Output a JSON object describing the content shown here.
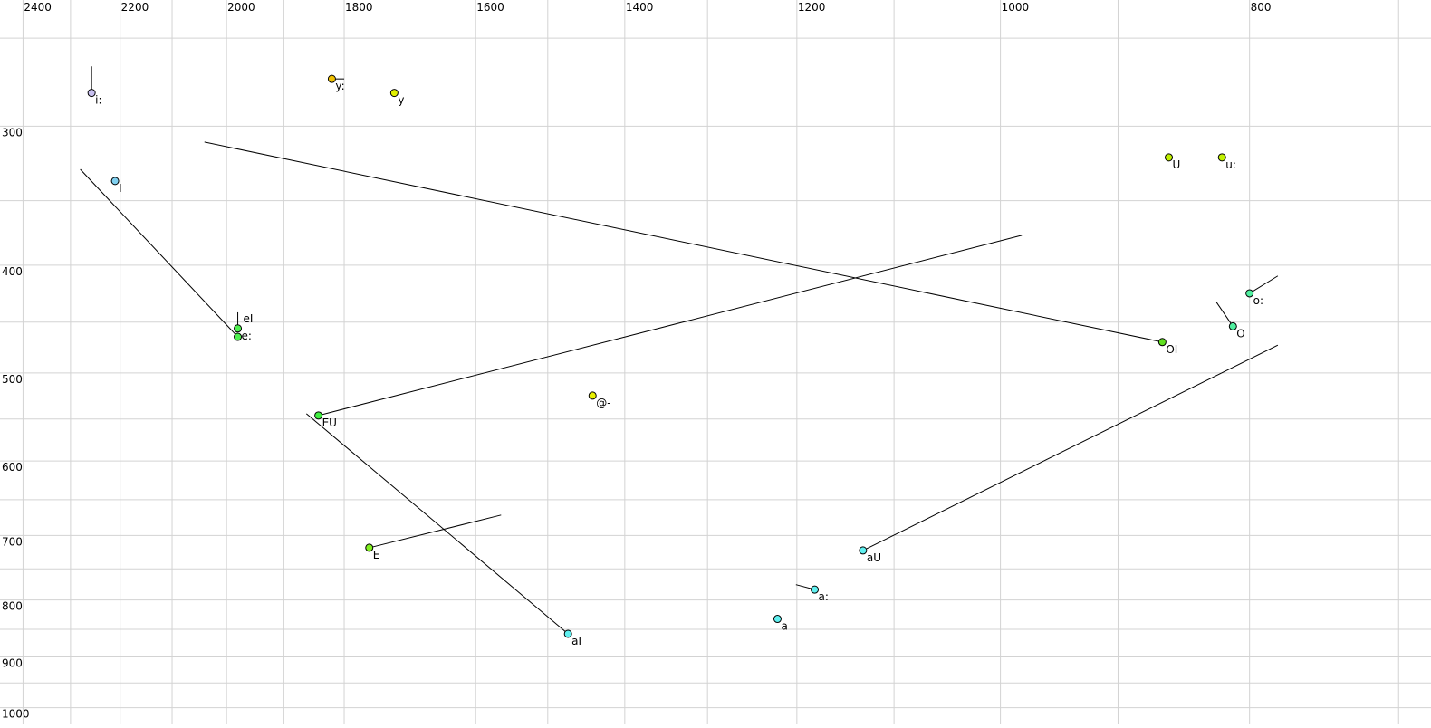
{
  "chart_data": {
    "type": "scatter",
    "title": "",
    "xlabel": "",
    "ylabel": "",
    "x_axis": {
      "quantity": "F2",
      "scale": "log",
      "reversed": true,
      "range": [
        2450,
        680
      ],
      "position": "top",
      "ticks": [
        2400,
        2200,
        2000,
        1800,
        1600,
        1400,
        1200,
        1000,
        800
      ],
      "gridlines": [
        2400,
        2300,
        2200,
        2100,
        2000,
        1900,
        1800,
        1700,
        1600,
        1500,
        1400,
        1300,
        1200,
        1100,
        1000,
        900,
        800,
        700
      ]
    },
    "y_axis": {
      "quantity": "F1",
      "scale": "log",
      "reversed": true,
      "range": [
        231,
        1035
      ],
      "position": "left",
      "ticks": [
        300,
        400,
        500,
        600,
        700,
        800,
        900,
        1000
      ],
      "gridlines": [
        250,
        300,
        350,
        400,
        450,
        500,
        550,
        600,
        650,
        700,
        750,
        800,
        850,
        900,
        950,
        1000
      ]
    },
    "grid": true,
    "grid_color": "#d3d3d3",
    "points": [
      {
        "label": "i:",
        "F2": 2257,
        "F1": 280,
        "color": "#c8c0f0",
        "end": {
          "F2": 2257,
          "F1": 265
        }
      },
      {
        "label": "y:",
        "F2": 1820,
        "F1": 272,
        "color": "#f0c000",
        "end": {
          "F2": 1800,
          "F1": 272
        }
      },
      {
        "label": "y",
        "F2": 1721,
        "F1": 280,
        "color": "#e0f000"
      },
      {
        "label": "I",
        "F2": 2210,
        "F1": 336,
        "color": "#80d0f0"
      },
      {
        "label": "e:",
        "F2": 1980,
        "F1": 456,
        "color": "#50f050",
        "end": {
          "F2": 1980,
          "F1": 441
        }
      },
      {
        "label": "eI",
        "F2": 1980,
        "F1": 464,
        "color": "#50f050",
        "end": {
          "F2": 2280,
          "F1": 328
        }
      },
      {
        "label": "U",
        "F2": 860,
        "F1": 320,
        "color": "#c0f000"
      },
      {
        "label": "u:",
        "F2": 820,
        "F1": 320,
        "color": "#c0f000"
      },
      {
        "label": "o:",
        "F2": 800,
        "F1": 424,
        "color": "#50f0a0",
        "end": {
          "F2": 780,
          "F1": 409
        }
      },
      {
        "label": "O",
        "F2": 812,
        "F1": 454,
        "color": "#50f0a0",
        "end": {
          "F2": 824,
          "F1": 432
        }
      },
      {
        "label": "OI",
        "F2": 865,
        "F1": 469,
        "color": "#60e020",
        "end": {
          "F2": 2040,
          "F1": 310
        }
      },
      {
        "label": "@-",
        "F2": 1441,
        "F1": 524,
        "color": "#e8f000"
      },
      {
        "label": "EU",
        "F2": 1842,
        "F1": 546,
        "color": "#40f040",
        "end": {
          "F2": 981,
          "F1": 376
        }
      },
      {
        "label": "E",
        "F2": 1760,
        "F1": 718,
        "color": "#80f020",
        "end": {
          "F2": 1564,
          "F1": 671
        }
      },
      {
        "label": "aU",
        "F2": 1131,
        "F1": 722,
        "color": "#60f0f0",
        "end": {
          "F2": 780,
          "F1": 472
        }
      },
      {
        "label": "a:",
        "F2": 1181,
        "F1": 783,
        "color": "#60f0f0",
        "end": {
          "F2": 1201,
          "F1": 775
        }
      },
      {
        "label": "a",
        "F2": 1221,
        "F1": 832,
        "color": "#60f0f0"
      },
      {
        "label": "aI",
        "F2": 1473,
        "F1": 858,
        "color": "#60f0f0",
        "end": {
          "F2": 1862,
          "F1": 544
        }
      }
    ]
  }
}
